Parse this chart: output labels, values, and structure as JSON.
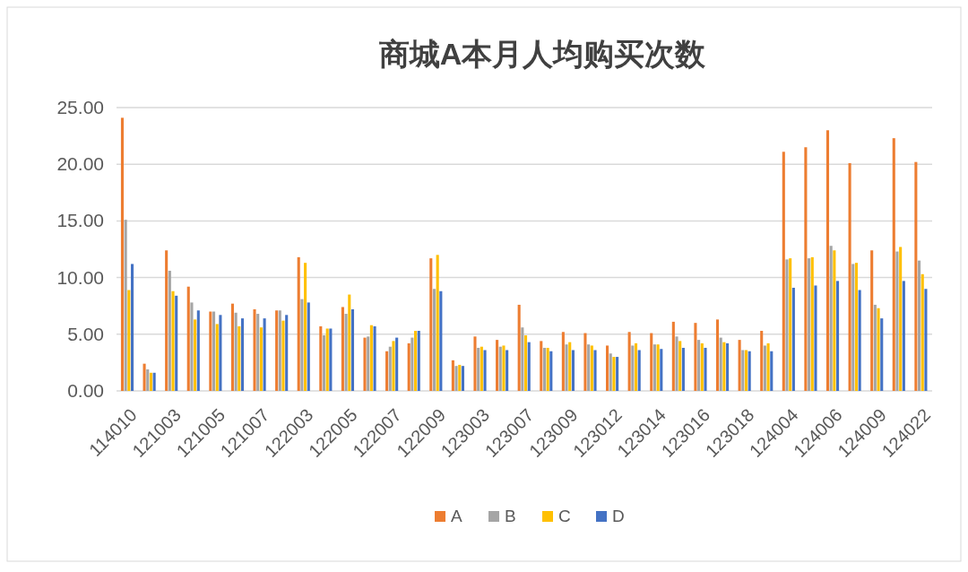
{
  "chart_data": {
    "type": "bar",
    "title": "商城A本月人均购买次数",
    "categories": [
      "114010",
      null,
      "121003",
      null,
      "121005",
      null,
      "121007",
      null,
      "122003",
      null,
      "122005",
      null,
      "122007",
      null,
      "122009",
      null,
      "123003",
      null,
      "123007",
      null,
      "123009",
      null,
      "123012",
      null,
      "123014",
      null,
      "123016",
      null,
      "123018",
      null,
      "124004",
      null,
      "124006",
      null,
      "124009",
      null,
      "124022"
    ],
    "series": [
      {
        "name": "A",
        "color": "#ed7d31",
        "values": [
          24.1,
          2.4,
          12.4,
          9.2,
          7.0,
          7.7,
          7.2,
          7.1,
          11.8,
          5.7,
          7.4,
          4.7,
          3.5,
          4.2,
          11.7,
          2.7,
          4.8,
          4.5,
          7.6,
          4.4,
          5.2,
          5.1,
          4.0,
          5.2,
          5.1,
          6.1,
          6.0,
          6.3,
          4.5,
          5.3,
          21.1,
          21.5,
          23.0,
          20.1,
          12.4,
          22.3,
          20.2
        ]
      },
      {
        "name": "B",
        "color": "#a5a5a5",
        "values": [
          15.1,
          1.9,
          10.6,
          7.8,
          7.0,
          6.9,
          6.8,
          7.1,
          8.1,
          4.9,
          6.8,
          4.8,
          3.9,
          4.7,
          9.0,
          2.2,
          3.8,
          3.9,
          5.6,
          3.8,
          4.1,
          4.1,
          3.3,
          4.0,
          4.1,
          4.8,
          4.5,
          4.7,
          3.6,
          4.0,
          11.6,
          11.7,
          12.8,
          11.2,
          7.6,
          12.3,
          11.5
        ]
      },
      {
        "name": "C",
        "color": "#ffc000",
        "values": [
          8.9,
          1.6,
          8.8,
          6.3,
          5.9,
          5.7,
          5.6,
          6.2,
          11.3,
          5.5,
          8.5,
          5.8,
          4.4,
          5.3,
          12.0,
          2.3,
          3.9,
          4.0,
          4.9,
          3.8,
          4.3,
          4.0,
          3.0,
          4.2,
          4.1,
          4.4,
          4.2,
          4.3,
          3.6,
          4.2,
          11.7,
          11.8,
          12.4,
          11.3,
          7.3,
          12.7,
          10.3
        ]
      },
      {
        "name": "D",
        "color": "#4472c4",
        "values": [
          11.2,
          1.6,
          8.4,
          7.1,
          6.7,
          6.4,
          6.4,
          6.7,
          7.8,
          5.5,
          7.2,
          5.7,
          4.7,
          5.3,
          8.8,
          2.2,
          3.6,
          3.6,
          4.3,
          3.5,
          3.6,
          3.6,
          3.0,
          3.6,
          3.7,
          3.8,
          3.8,
          4.2,
          3.5,
          3.5,
          9.1,
          9.3,
          9.7,
          8.9,
          6.4,
          9.7,
          9.0
        ]
      }
    ],
    "ylim": [
      0,
      25
    ],
    "yticks": [
      {
        "value": 0,
        "label": "0.00"
      },
      {
        "value": 5,
        "label": "5.00"
      },
      {
        "value": 10,
        "label": "10.00"
      },
      {
        "value": 15,
        "label": "15.00"
      },
      {
        "value": 20,
        "label": "20.00"
      },
      {
        "value": 25,
        "label": "25.00"
      }
    ],
    "grid": "y",
    "legend": "bottom"
  }
}
